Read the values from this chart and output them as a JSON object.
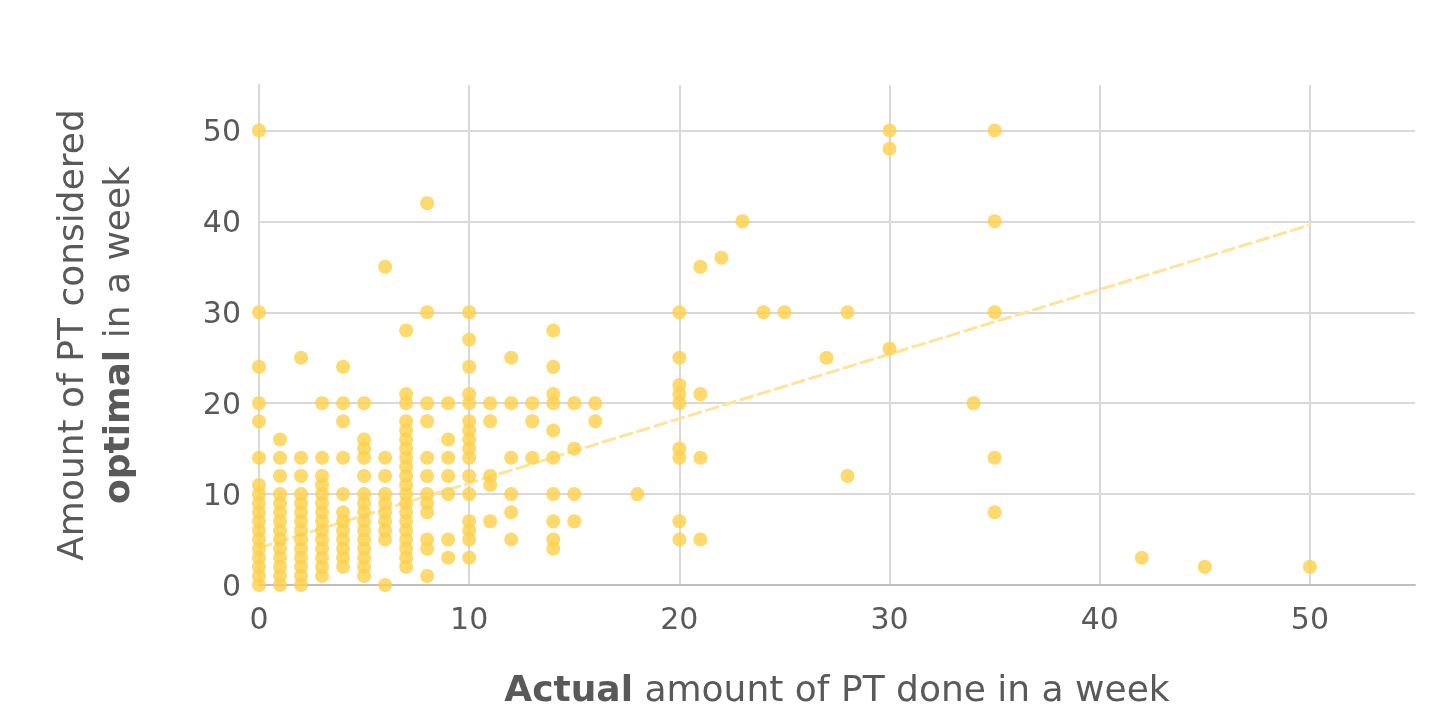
{
  "chart_data": {
    "type": "scatter",
    "xlabel": "Actual amount of PT done in a week",
    "ylabel": "Amount of PT considered\noptimal in a week",
    "xlim": [
      0,
      55
    ],
    "ylim": [
      0,
      55
    ],
    "xticks": [
      0,
      10,
      20,
      30,
      40,
      50
    ],
    "yticks": [
      0,
      10,
      20,
      30,
      40,
      50
    ],
    "grid": true,
    "marker": "circle",
    "series": [
      {
        "color": "#fcd04a",
        "x": [
          0,
          0,
          0,
          0,
          0,
          0,
          0,
          0,
          0,
          0,
          0,
          0,
          0,
          0,
          0,
          0,
          0,
          0,
          1,
          1,
          1,
          1,
          1,
          1,
          1,
          1,
          1,
          1,
          1,
          1,
          1,
          1,
          2,
          2,
          2,
          2,
          2,
          2,
          2,
          2,
          2,
          2,
          2,
          2,
          2,
          2,
          3,
          3,
          3,
          3,
          3,
          3,
          3,
          3,
          3,
          3,
          3,
          3,
          3,
          3,
          4,
          4,
          4,
          4,
          4,
          4,
          4,
          4,
          4,
          4,
          4,
          4,
          5,
          5,
          5,
          5,
          5,
          5,
          5,
          5,
          5,
          5,
          5,
          5,
          5,
          5,
          5,
          6,
          6,
          6,
          6,
          6,
          6,
          6,
          6,
          6,
          6,
          7,
          7,
          7,
          7,
          7,
          7,
          7,
          7,
          7,
          7,
          7,
          7,
          7,
          7,
          7,
          7,
          7,
          7,
          7,
          7,
          8,
          8,
          8,
          8,
          8,
          8,
          8,
          8,
          8,
          8,
          8,
          8,
          9,
          9,
          9,
          9,
          9,
          9,
          9,
          10,
          10,
          10,
          10,
          10,
          10,
          10,
          10,
          10,
          10,
          10,
          10,
          10,
          10,
          10,
          10,
          11,
          11,
          11,
          11,
          11,
          12,
          12,
          12,
          12,
          12,
          12,
          13,
          13,
          13,
          14,
          14,
          14,
          14,
          14,
          14,
          14,
          14,
          14,
          14,
          15,
          15,
          15,
          15,
          16,
          16,
          18,
          20,
          20,
          20,
          20,
          20,
          20,
          20,
          20,
          20,
          21,
          21,
          21,
          21,
          22,
          23,
          24,
          25,
          27,
          28,
          28,
          30,
          30,
          30,
          34,
          35,
          35,
          35,
          35,
          35,
          42,
          45,
          50
        ],
        "values": [
          50,
          30,
          24,
          20,
          18,
          14,
          11,
          10,
          9,
          8,
          7,
          6,
          5,
          4,
          3,
          2,
          1,
          0,
          16,
          14,
          12,
          10,
          9,
          8,
          7,
          6,
          5,
          4,
          3,
          2,
          1,
          0,
          25,
          14,
          12,
          10,
          9,
          8,
          7,
          6,
          5,
          4,
          3,
          2,
          1,
          0,
          20,
          14,
          12,
          11,
          10,
          9,
          8,
          7,
          6,
          5,
          4,
          3,
          2,
          1,
          24,
          20,
          18,
          14,
          10,
          8,
          7,
          6,
          5,
          4,
          3,
          2,
          20,
          16,
          15,
          14,
          12,
          10,
          9,
          8,
          7,
          6,
          5,
          4,
          3,
          2,
          1,
          35,
          14,
          12,
          10,
          9,
          8,
          7,
          6,
          5,
          0,
          28,
          21,
          20,
          18,
          17,
          16,
          15,
          14,
          12,
          11,
          10,
          9,
          8,
          7,
          6,
          5,
          4,
          3,
          2,
          13,
          42,
          30,
          20,
          18,
          14,
          12,
          10,
          9,
          8,
          5,
          4,
          1,
          20,
          16,
          14,
          12,
          10,
          5,
          3,
          30,
          27,
          24,
          21,
          20,
          18,
          17,
          16,
          15,
          14,
          12,
          10,
          7,
          6,
          5,
          3,
          20,
          18,
          12,
          11,
          7,
          25,
          20,
          14,
          10,
          8,
          5,
          20,
          18,
          14,
          28,
          24,
          21,
          20,
          17,
          14,
          10,
          7,
          5,
          4,
          20,
          15,
          10,
          7,
          20,
          18,
          10,
          30,
          25,
          22,
          21,
          20,
          15,
          14,
          7,
          5,
          35,
          21,
          14,
          5,
          36,
          40,
          30,
          30,
          25,
          30,
          12,
          50,
          48,
          26,
          20,
          50,
          40,
          30,
          14,
          8,
          3,
          2,
          2
        ]
      },
      {
        "type": "line",
        "color": "#fde49a",
        "line_style": "dashed",
        "marker": "none",
        "x": [
          0,
          50
        ],
        "values": [
          4.1,
          39.6
        ]
      }
    ]
  }
}
